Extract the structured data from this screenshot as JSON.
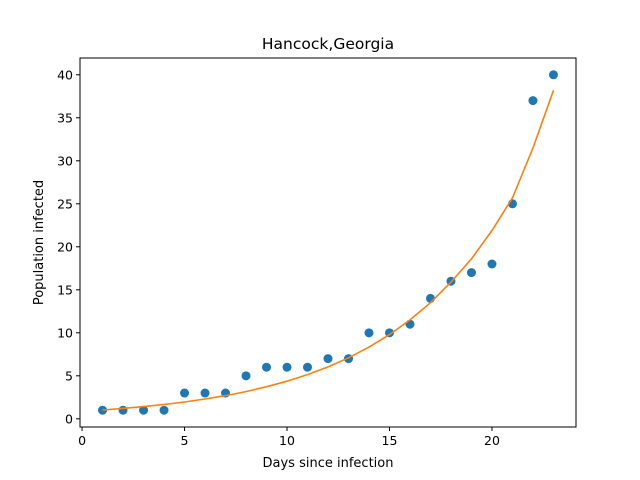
{
  "chart_data": {
    "type": "scatter",
    "title": "Hancock,Georgia",
    "xlabel": "Days since infection",
    "ylabel": "Population infected",
    "xlim": [
      -0.1,
      24.1
    ],
    "ylim": [
      -0.95,
      41.95
    ],
    "xticks": [
      0,
      5,
      10,
      15,
      20
    ],
    "yticks": [
      0,
      5,
      10,
      15,
      20,
      25,
      30,
      35,
      40
    ],
    "grid": false,
    "series": [
      {
        "kind": "scatter",
        "color": "#1f77b4",
        "x": [
          1,
          2,
          3,
          4,
          5,
          6,
          7,
          8,
          9,
          10,
          11,
          12,
          13,
          14,
          15,
          16,
          17,
          18,
          19,
          20,
          21,
          22,
          23
        ],
        "y": [
          1,
          1,
          1,
          1,
          3,
          3,
          3,
          5,
          6,
          6,
          6,
          7,
          7,
          10,
          10,
          11,
          14,
          16,
          17,
          18,
          25,
          37,
          40
        ]
      },
      {
        "kind": "line",
        "color": "#ff7f0e",
        "x": [
          1,
          2,
          3,
          4,
          5,
          6,
          7,
          8,
          9,
          10,
          11,
          12,
          13,
          14,
          15,
          16,
          17,
          18,
          19,
          20,
          21,
          22,
          23
        ],
        "y": [
          1.03,
          1.21,
          1.42,
          1.67,
          1.96,
          2.3,
          2.7,
          3.17,
          3.73,
          4.38,
          5.14,
          6.04,
          7.1,
          8.34,
          9.79,
          11.5,
          13.5,
          15.9,
          18.6,
          21.9,
          25.7,
          31.5,
          38.2
        ]
      }
    ]
  }
}
